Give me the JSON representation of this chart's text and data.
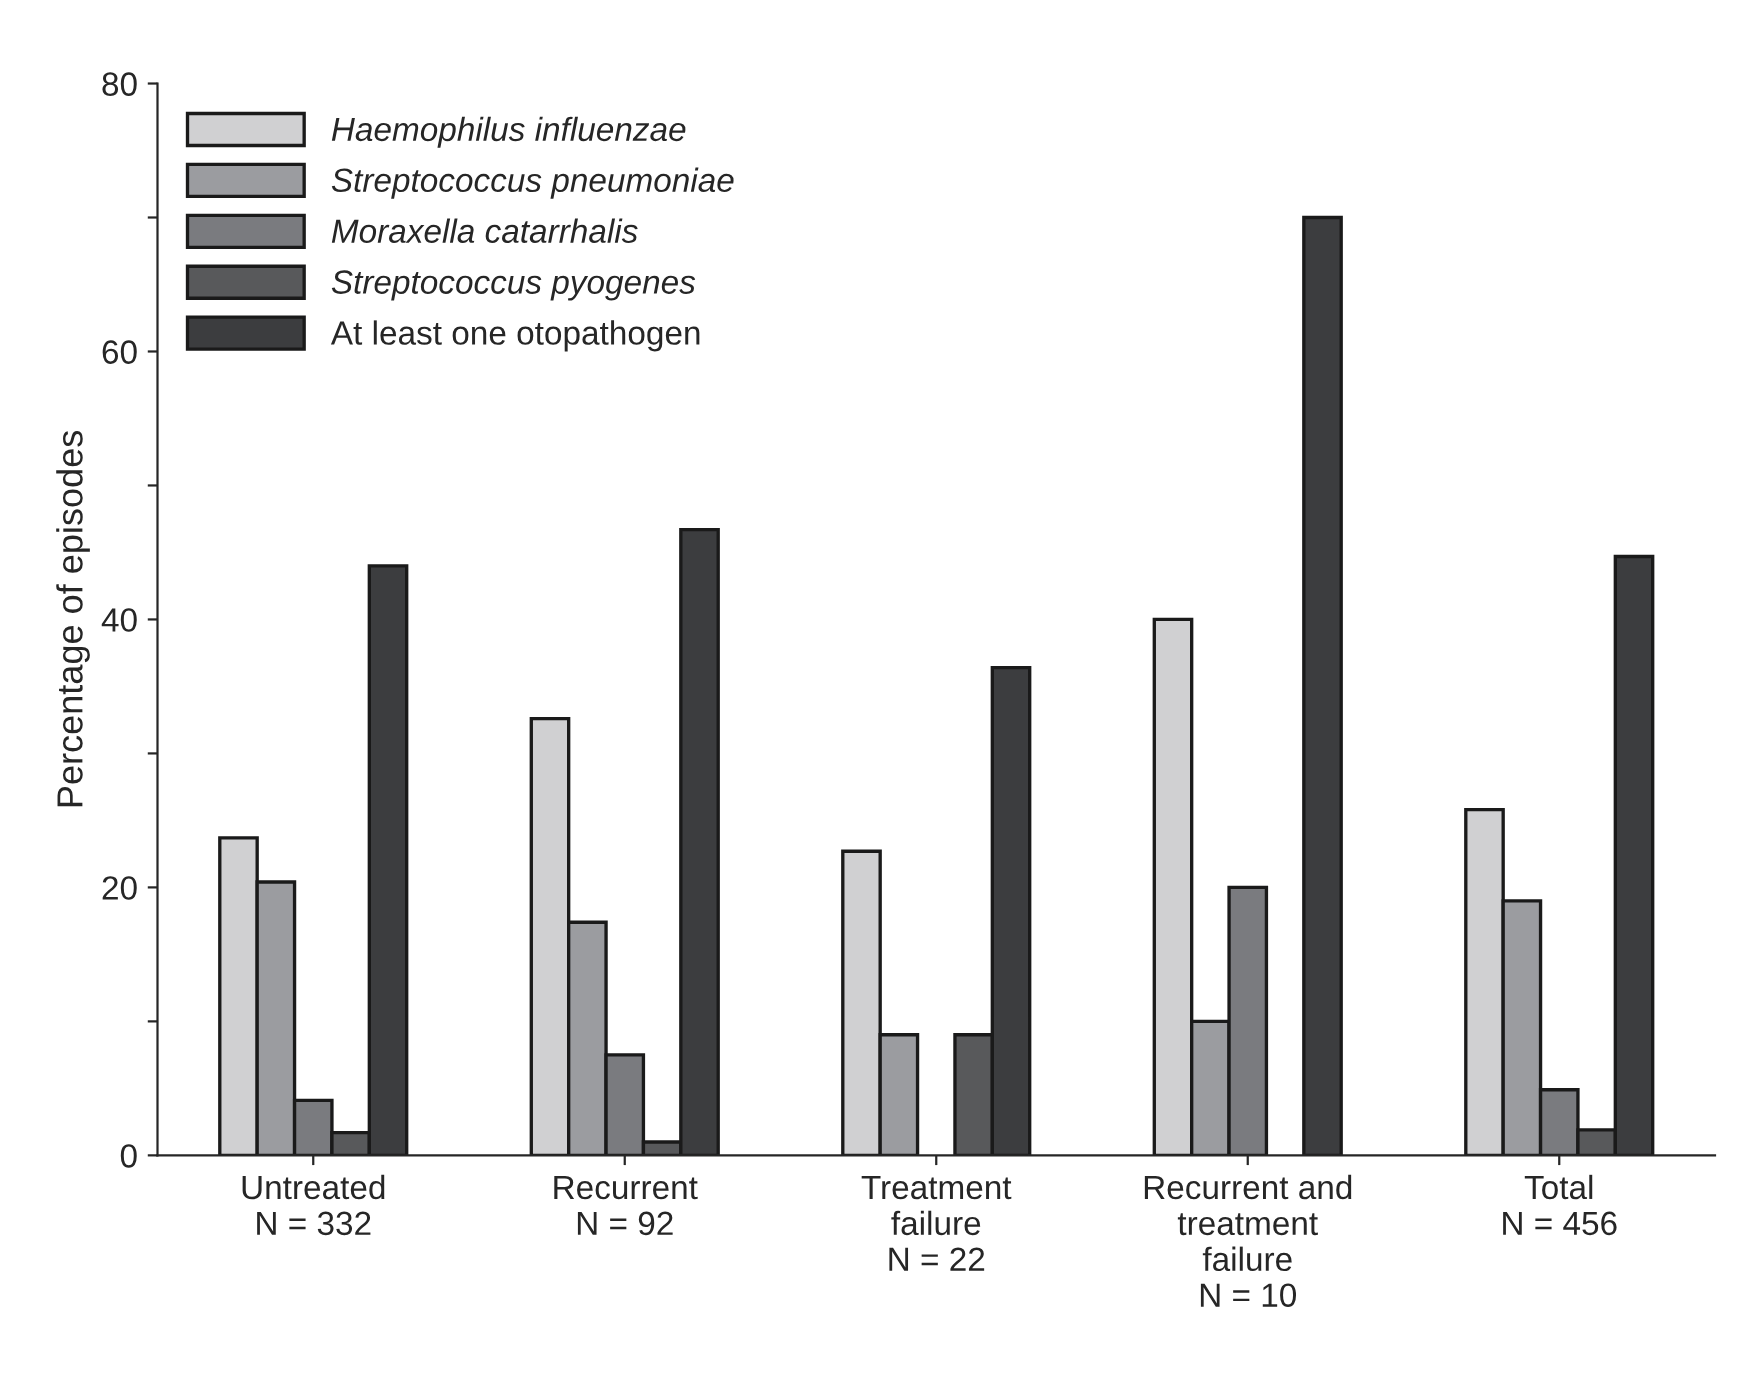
{
  "chart_data": {
    "type": "bar",
    "ylabel": "Percentage of episodes",
    "categories": [
      "Untreated\nN = 332",
      "Recurrent\nN = 92",
      "Treatment\nfailure\nN = 22",
      "Recurrent and\ntreatment\nfailure\nN = 10",
      "Total\nN = 456"
    ],
    "series": [
      {
        "name": "Haemophilus influenzae",
        "color": "#d0d0d2",
        "values": [
          23.7,
          32.6,
          22.7,
          40,
          25.8
        ]
      },
      {
        "name": "Streptococcus pneumoniae",
        "color": "#9b9ca0",
        "values": [
          20.4,
          17.4,
          9.0,
          10,
          19.0
        ]
      },
      {
        "name": "Moraxella catarrhalis",
        "color": "#7a7b7f",
        "values": [
          4.1,
          7.5,
          null,
          20,
          4.9
        ]
      },
      {
        "name": "Streptococcus pyogenes",
        "color": "#58595b",
        "values": [
          1.7,
          1.0,
          9.0,
          null,
          1.9
        ]
      },
      {
        "name": "At least one otopathogen",
        "color": "#3c3d3f",
        "values": [
          44.0,
          46.7,
          36.4,
          70,
          44.7
        ]
      }
    ],
    "ylim": [
      0,
      80
    ],
    "yticks": [
      0,
      {
        "value": 10,
        "label": null
      },
      20,
      {
        "value": 30,
        "label": null
      },
      40,
      {
        "value": 50,
        "label": null
      },
      60,
      {
        "value": 70,
        "label": null
      },
      80
    ],
    "grid": false,
    "legend": "top left"
  }
}
